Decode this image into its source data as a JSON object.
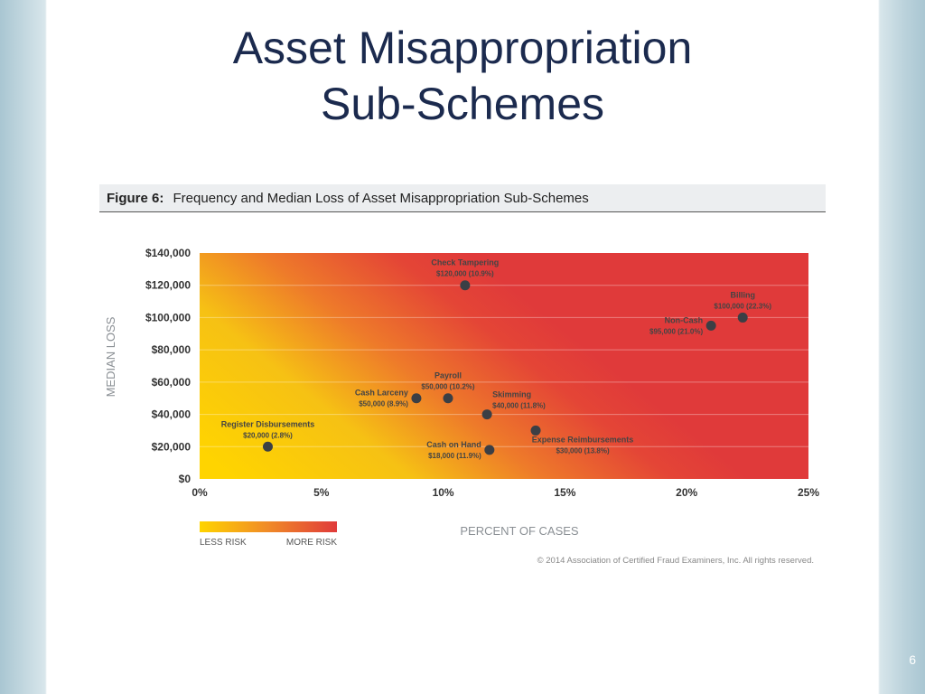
{
  "slide": {
    "title_line1": "Asset Misappropriation",
    "title_line2": "Sub-Schemes",
    "page_number": "6"
  },
  "figure": {
    "label": "Figure 6:",
    "caption": "Frequency and Median Loss of Asset Misappropriation Sub-Schemes",
    "copyright": "© 2014 Association of Certified Fraud Examiners, Inc. All rights reserved."
  },
  "legend": {
    "less_risk": "LESS RISK",
    "more_risk": "MORE RISK",
    "color_low": "#ffd400",
    "color_high": "#e03a3a"
  },
  "chart_data": {
    "type": "scatter",
    "xlabel": "PERCENT OF CASES",
    "ylabel": "MEDIAN LOSS",
    "xlim": [
      0,
      25
    ],
    "ylim": [
      0,
      140000
    ],
    "xticks": [
      0,
      5,
      10,
      15,
      20,
      25
    ],
    "xtick_labels": [
      "0%",
      "5%",
      "10%",
      "15%",
      "20%",
      "25%"
    ],
    "yticks": [
      0,
      20000,
      40000,
      60000,
      80000,
      100000,
      120000,
      140000
    ],
    "ytick_labels": [
      "$0",
      "$20,000",
      "$40,000",
      "$60,000",
      "$80,000",
      "$100,000",
      "$120,000",
      "$140,000"
    ],
    "grid": true,
    "points": [
      {
        "name": "Check Tampering",
        "value_label": "$120,000 (10.9%)",
        "x": 10.9,
        "y": 120000,
        "label_pos": "above"
      },
      {
        "name": "Billing",
        "value_label": "$100,000 (22.3%)",
        "x": 22.3,
        "y": 100000,
        "label_pos": "above"
      },
      {
        "name": "Non-Cash",
        "value_label": "$95,000 (21.0%)",
        "x": 21.0,
        "y": 95000,
        "label_pos": "left"
      },
      {
        "name": "Payroll",
        "value_label": "$50,000 (10.2%)",
        "x": 10.2,
        "y": 50000,
        "label_pos": "above"
      },
      {
        "name": "Cash Larceny",
        "value_label": "$50,000 (8.9%)",
        "x": 8.9,
        "y": 50000,
        "label_pos": "left"
      },
      {
        "name": "Skimming",
        "value_label": "$40,000 (11.8%)",
        "x": 11.8,
        "y": 40000,
        "label_pos": "right"
      },
      {
        "name": "Expense Reimbursements",
        "value_label": "$30,000 (13.8%)",
        "x": 13.8,
        "y": 30000,
        "label_pos": "below"
      },
      {
        "name": "Register Disbursements",
        "value_label": "$20,000 (2.8%)",
        "x": 2.8,
        "y": 20000,
        "label_pos": "above"
      },
      {
        "name": "Cash on Hand",
        "value_label": "$18,000 (11.9%)",
        "x": 11.9,
        "y": 18000,
        "label_pos": "left"
      }
    ]
  }
}
